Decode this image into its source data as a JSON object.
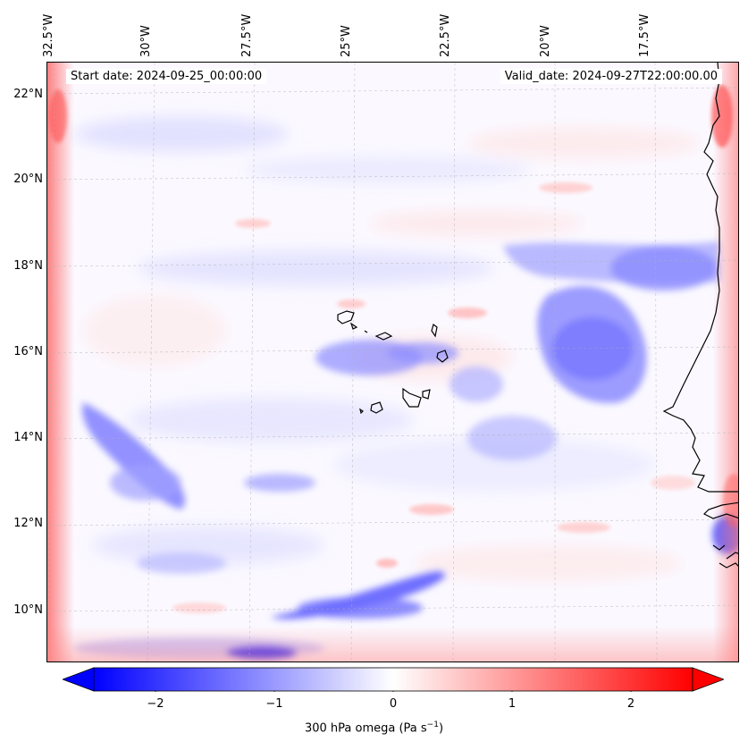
{
  "figure": {
    "start_date": "Start date: 2024-09-25_00:00:00",
    "valid_date": "Valid_date: 2024-09-27T22:00:00.00",
    "colorbar_label_main": "300 hPa omega (Pa s",
    "colorbar_label_sup": "−1",
    "colorbar_label_end": ")",
    "colormap": "bwr",
    "colors": {
      "negative": "#0000ff",
      "zero": "#ffffff",
      "positive": "#ff0000",
      "coastline": "#000000"
    }
  },
  "map": {
    "projection": "Lambert conformal",
    "longitude_ticks": [
      "32.5°W",
      "30°W",
      "27.5°W",
      "25°W",
      "22.5°W",
      "20°W",
      "17.5°W"
    ],
    "latitude_ticks": [
      "22°N",
      "20°N",
      "18°N",
      "16°N",
      "14°N",
      "12°N",
      "10°N"
    ],
    "gridlines": true,
    "features": [
      "Cape Verde islands",
      "West African coastline (Senegal, Gambia, Guinea-Bissau)",
      "Mauritania coast"
    ]
  },
  "colorbar": {
    "range": [
      -2.7,
      2.7
    ],
    "extend": "both",
    "ticks": [
      "−2",
      "−1",
      "0",
      "1",
      "2"
    ]
  }
}
